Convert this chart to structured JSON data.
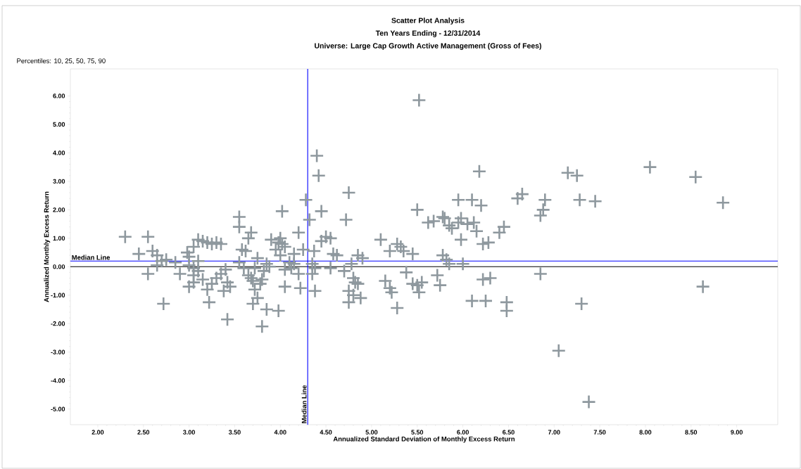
{
  "chart_data": {
    "type": "scatter",
    "title": "Scatter Plot Analysis",
    "subtitle": "Ten Years Ending - 12/31/2014",
    "annotations": [
      "Universe: Large Cap Growth Active Management (Gross of Fees)",
      "Percentiles: 10, 25, 50, 75, 90"
    ],
    "xlabel": "Annualized Standard Deviation of Monthly Excess Return",
    "ylabel": "Annualized Monthly Excess Return",
    "xlim": [
      1.7,
      9.45
    ],
    "ylim": [
      -5.55,
      6.95
    ],
    "xticks": [
      {
        "value": 2,
        "label": "2.00"
      },
      {
        "value": 2.5,
        "label": "2.50"
      },
      {
        "value": 3,
        "label": "3.00"
      },
      {
        "value": 3.5,
        "label": "3.50"
      },
      {
        "value": 4,
        "label": "4.00"
      },
      {
        "value": 4.5,
        "label": "4.50"
      },
      {
        "value": 5,
        "label": "5.00"
      },
      {
        "value": 5.5,
        "label": "5.50"
      },
      {
        "value": 6,
        "label": "6.00"
      },
      {
        "value": 6.5,
        "label": "6.50"
      },
      {
        "value": 7,
        "label": "7.00"
      },
      {
        "value": 7.5,
        "label": "7.50"
      },
      {
        "value": 8,
        "label": "8.00"
      },
      {
        "value": 8.5,
        "label": "8.50"
      },
      {
        "value": 9,
        "label": "9.00"
      }
    ],
    "yticks": [
      {
        "value": -5,
        "label": "-5.00"
      },
      {
        "value": -4,
        "label": "-4.00"
      },
      {
        "value": -3,
        "label": "-3.00"
      },
      {
        "value": -2,
        "label": "-2.00"
      },
      {
        "value": -1,
        "label": "-1.00"
      },
      {
        "value": 0,
        "label": "0.00"
      },
      {
        "value": 1,
        "label": "1.00"
      },
      {
        "value": 2,
        "label": "2.00"
      },
      {
        "value": 3,
        "label": "3.00"
      },
      {
        "value": 4,
        "label": "4.00"
      },
      {
        "value": 5,
        "label": "5.00"
      },
      {
        "value": 6,
        "label": "6.00"
      }
    ],
    "marker": "cross",
    "ref_lines": [
      {
        "axis": "y",
        "value": 0,
        "color": "#000000"
      },
      {
        "axis": "y",
        "value": 0.2,
        "label": "Median Line",
        "color": "#0000ff"
      },
      {
        "axis": "x",
        "value": 4.3,
        "label": "Median Line",
        "color": "#0000ff"
      }
    ],
    "series": [
      {
        "color": "#8e989e",
        "x": [
          2.3,
          2.55,
          2.45,
          2.6,
          2.65,
          2.55,
          2.7,
          2.75,
          2.72,
          2.65,
          2.85,
          2.9,
          2.98,
          3.0,
          3.05,
          3.1,
          3.15,
          3.2,
          3.25,
          3.3,
          3.35,
          3.0,
          3.05,
          3.05,
          3.1,
          3.15,
          3.2,
          3.25,
          3.22,
          3.3,
          3.35,
          3.38,
          3.42,
          3.45,
          3.42,
          3.4,
          3.0,
          3.1,
          3.05,
          3.55,
          3.55,
          3.58,
          3.62,
          3.65,
          3.68,
          3.55,
          3.6,
          3.65,
          3.7,
          3.72,
          3.75,
          3.7,
          3.68,
          3.78,
          3.8,
          3.85,
          3.8,
          3.72,
          3.75,
          3.85,
          3.9,
          3.95,
          3.98,
          4.0,
          4.02,
          4.05,
          4.0,
          4.02,
          3.98,
          4.05,
          4.1,
          4.15,
          4.12,
          4.2,
          4.22,
          4.2,
          4.25,
          4.28,
          4.05,
          4.15,
          3.88,
          3.82,
          4.32,
          4.35,
          4.38,
          4.4,
          4.42,
          4.37,
          4.38,
          4.35,
          4.45,
          4.45,
          4.5,
          4.55,
          4.58,
          4.55,
          4.62,
          4.72,
          4.75,
          4.7,
          4.75,
          4.75,
          4.8,
          4.82,
          4.85,
          4.8,
          4.88,
          4.85,
          4.9,
          4.78,
          5.1,
          5.2,
          5.28,
          5.32,
          5.35,
          5.15,
          5.2,
          5.22,
          5.28,
          5.38,
          5.45,
          5.5,
          5.5,
          5.52,
          5.45,
          5.52,
          5.55,
          5.62,
          5.68,
          5.72,
          5.75,
          5.78,
          5.8,
          5.78,
          5.82,
          5.85,
          5.88,
          5.95,
          5.98,
          5.95,
          5.98,
          5.85,
          6.0,
          6.05,
          6.1,
          6.12,
          6.15,
          6.1,
          6.18,
          6.2,
          6.22,
          6.25,
          6.22,
          6.28,
          6.3,
          6.4,
          6.45,
          6.48,
          6.48,
          6.6,
          6.65,
          6.85,
          6.88,
          6.9,
          6.85,
          7.05,
          7.15,
          7.25,
          7.28,
          7.3,
          7.45,
          7.38,
          8.05,
          8.55,
          8.63,
          8.85
        ],
        "values": [
          1.05,
          1.05,
          0.45,
          0.55,
          0.4,
          -0.25,
          0.2,
          0.25,
          -1.3,
          0.05,
          0.15,
          -0.25,
          0.5,
          0.35,
          0.7,
          0.95,
          0.9,
          0.85,
          0.8,
          0.85,
          0.8,
          -0.7,
          -0.55,
          -0.3,
          -0.15,
          -0.45,
          -0.8,
          -0.6,
          -1.25,
          -0.4,
          -0.25,
          -0.85,
          -0.55,
          -0.7,
          -1.85,
          -0.1,
          0.05,
          0.2,
          -0.05,
          1.75,
          1.4,
          0.6,
          0.55,
          1.0,
          1.2,
          0.15,
          -0.05,
          -0.3,
          -0.5,
          -0.8,
          -1.1,
          -1.3,
          -0.4,
          -0.6,
          -0.45,
          -1.5,
          -2.1,
          -0.05,
          0.3,
          0.1,
          0.95,
          0.6,
          0.85,
          1.0,
          0.8,
          0.7,
          0.4,
          1.95,
          -1.55,
          -0.7,
          0.15,
          0.1,
          -0.05,
          -0.25,
          -0.75,
          1.2,
          0.6,
          2.35,
          -0.1,
          0.45,
          0.0,
          -0.15,
          1.65,
          0.1,
          -0.05,
          3.9,
          3.2,
          0.55,
          -0.85,
          -0.25,
          1.95,
          0.9,
          1.05,
          1.0,
          0.45,
          -0.05,
          0.4,
          1.65,
          2.6,
          -0.15,
          -0.85,
          -1.25,
          -0.4,
          -0.55,
          -0.6,
          -1.0,
          -1.1,
          0.4,
          0.3,
          0.1,
          0.95,
          0.55,
          0.8,
          0.7,
          0.55,
          -0.5,
          -0.75,
          -0.9,
          -1.45,
          -0.2,
          -0.6,
          -0.65,
          2.0,
          5.85,
          0.45,
          -0.9,
          -0.55,
          1.55,
          1.6,
          -0.3,
          -0.65,
          1.75,
          1.7,
          0.4,
          0.25,
          1.45,
          1.35,
          1.55,
          1.7,
          2.35,
          0.95,
          0.1,
          0.1,
          1.5,
          2.35,
          1.55,
          1.25,
          -1.2,
          3.35,
          2.15,
          0.8,
          -1.2,
          -0.45,
          0.85,
          -0.4,
          1.2,
          1.4,
          -1.25,
          -1.55,
          2.4,
          2.55,
          1.8,
          2.0,
          2.35,
          -0.25,
          -2.95,
          3.3,
          3.2,
          2.35,
          -1.3,
          2.3,
          -4.75,
          3.5,
          3.15,
          -0.7,
          2.25
        ]
      }
    ]
  }
}
